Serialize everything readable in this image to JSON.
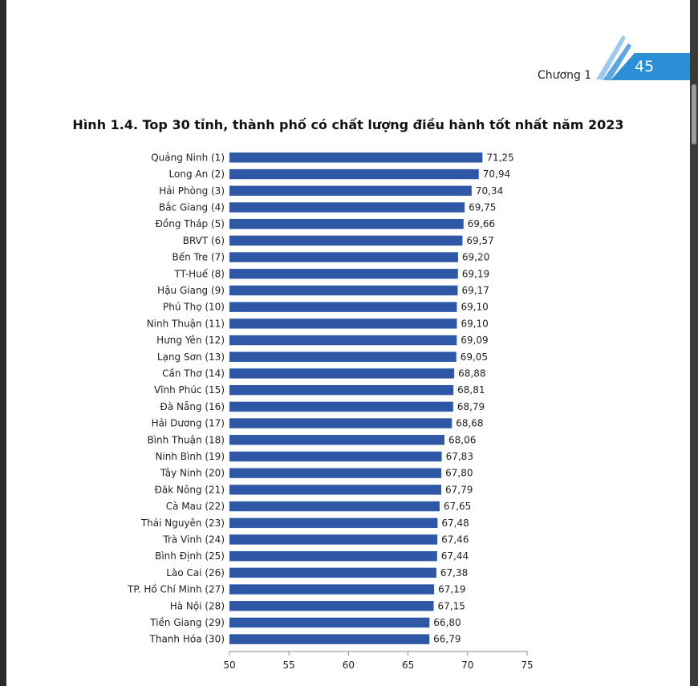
{
  "header": {
    "chapter_label": "Chương 1",
    "page_number": "45",
    "accent_color": "#2b8fd6"
  },
  "chart_data": {
    "type": "bar",
    "orientation": "horizontal",
    "title": "Hình 1.4. Top 30 tỉnh, thành phố có chất lượng điều hành tốt nhất năm 2023",
    "categories": [
      "Quảng Ninh (1)",
      "Long An (2)",
      "Hải Phòng (3)",
      "Bắc Giang (4)",
      "Đồng Tháp (5)",
      "BRVT (6)",
      "Bến Tre (7)",
      "TT-Huế (8)",
      "Hậu Giang (9)",
      "Phú Thọ (10)",
      "Ninh Thuận (11)",
      "Hưng Yên (12)",
      "Lạng Sơn (13)",
      "Cần Thơ (14)",
      "Vĩnh Phúc (15)",
      "Đà Nẵng (16)",
      "Hải Dương (17)",
      "Bình Thuận (18)",
      "Ninh Bình (19)",
      "Tây Ninh (20)",
      "Đăk Nông (21)",
      "Cà Mau (22)",
      "Thái Nguyên (23)",
      "Trà Vinh (24)",
      "Bình Định (25)",
      "Lào Cai (26)",
      "TP. Hồ Chí Minh (27)",
      "Hà Nội (28)",
      "Tiền Giang (29)",
      "Thanh Hóa (30)"
    ],
    "values": [
      71.25,
      70.94,
      70.34,
      69.75,
      69.66,
      69.57,
      69.2,
      69.19,
      69.17,
      69.1,
      69.1,
      69.09,
      69.05,
      68.88,
      68.81,
      68.79,
      68.68,
      68.06,
      67.83,
      67.8,
      67.79,
      67.65,
      67.48,
      67.46,
      67.44,
      67.38,
      67.19,
      67.15,
      66.8,
      66.79
    ],
    "value_labels": [
      "71,25",
      "70,94",
      "70,34",
      "69,75",
      "69,66",
      "69,57",
      "69,20",
      "69,19",
      "69,17",
      "69,10",
      "69,10",
      "69,09",
      "69,05",
      "68,88",
      "68,81",
      "68,79",
      "68,68",
      "68,06",
      "67,83",
      "67,80",
      "67,79",
      "67,65",
      "67,48",
      "67,46",
      "67,44",
      "67,38",
      "67,19",
      "67,15",
      "66,80",
      "66,79"
    ],
    "xlim": [
      50,
      75
    ],
    "xticks": [
      50,
      55,
      60,
      65,
      70,
      75
    ],
    "xtick_labels": [
      "50",
      "55",
      "60",
      "65",
      "70",
      "75"
    ],
    "xlabel": "",
    "ylabel": "",
    "grid": false,
    "legend": "none",
    "bar_color": "#2e58a6"
  }
}
